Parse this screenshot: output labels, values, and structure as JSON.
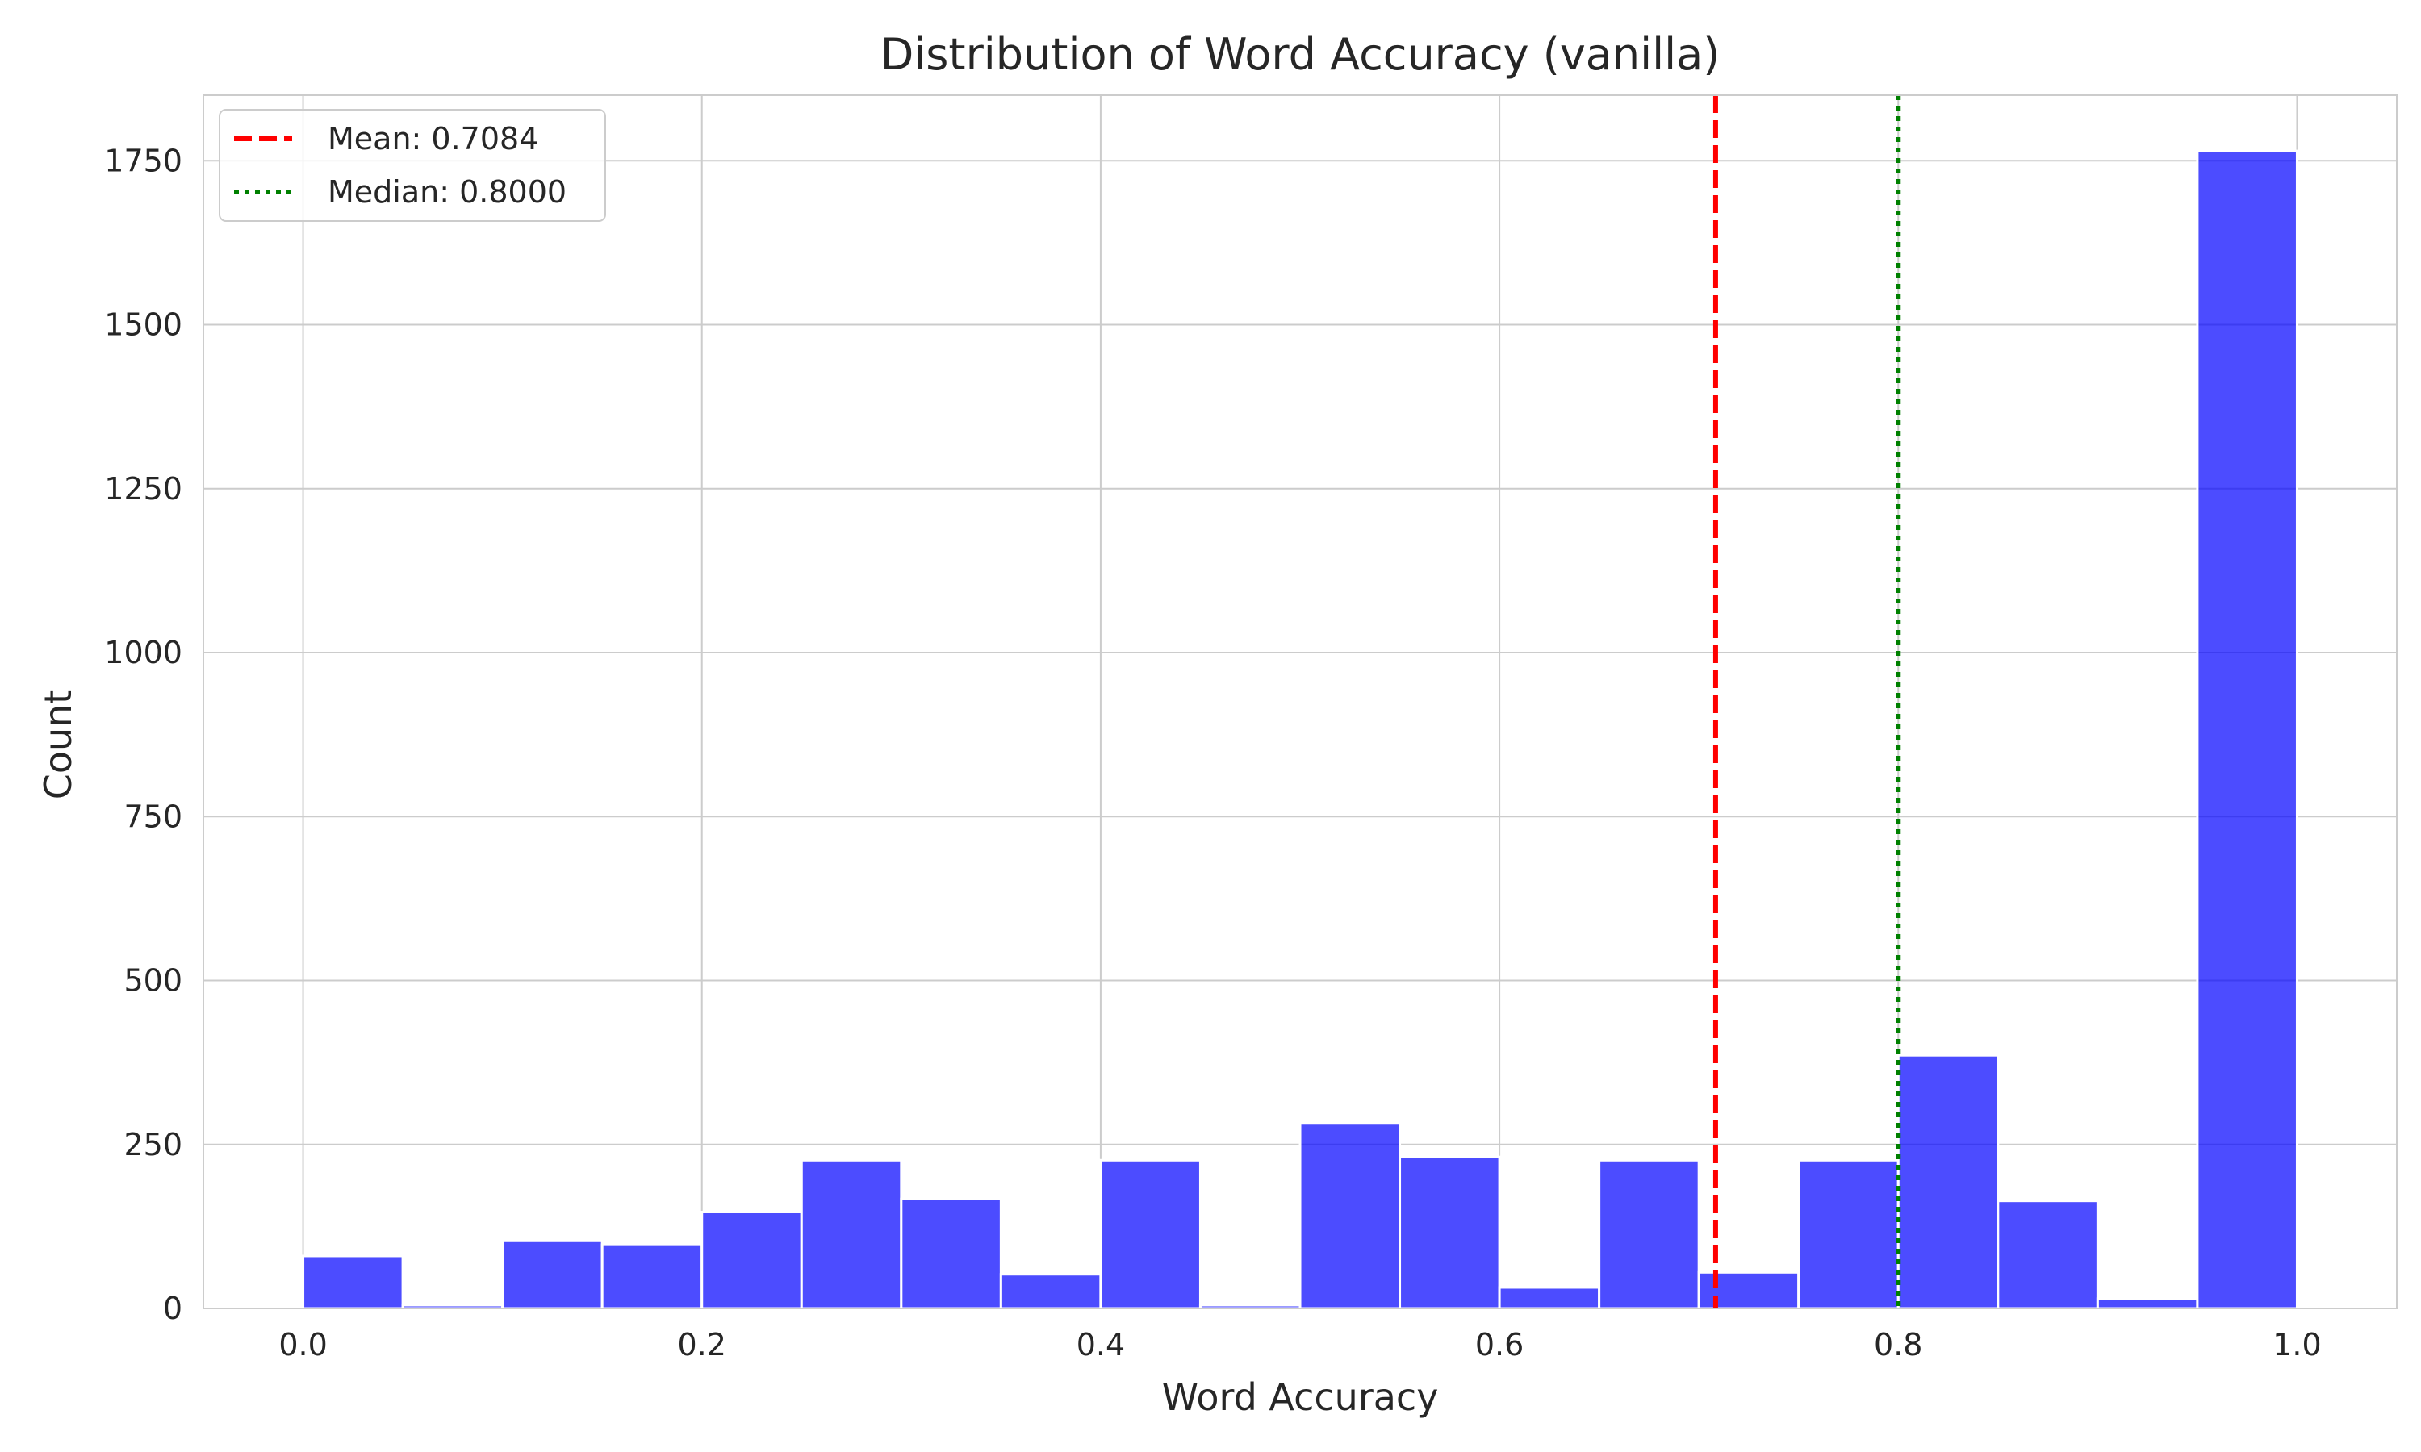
{
  "chart_data": {
    "type": "bar",
    "title": "Distribution of Word Accuracy (vanilla)",
    "xlabel": "Word Accuracy",
    "ylabel": "Count",
    "xlim": [
      -0.05,
      1.05
    ],
    "ylim": [
      0,
      1850
    ],
    "xticks": [
      0.0,
      0.2,
      0.4,
      0.6,
      0.8,
      1.0
    ],
    "xtick_labels": [
      "0.0",
      "0.2",
      "0.4",
      "0.6",
      "0.8",
      "1.0"
    ],
    "yticks": [
      0,
      250,
      500,
      750,
      1000,
      1250,
      1500,
      1750
    ],
    "ytick_labels": [
      "0",
      "250",
      "500",
      "750",
      "1000",
      "1250",
      "1500",
      "1750"
    ],
    "grid": true,
    "bin_width": 0.05,
    "bin_starts": [
      0.0,
      0.05,
      0.1,
      0.15,
      0.2,
      0.25,
      0.3,
      0.35,
      0.4,
      0.45,
      0.5,
      0.55,
      0.6,
      0.65,
      0.7,
      0.75,
      0.8,
      0.85,
      0.9,
      0.95
    ],
    "values": [
      80,
      5,
      103,
      97,
      147,
      226,
      167,
      52,
      226,
      5,
      282,
      231,
      32,
      226,
      55,
      226,
      386,
      164,
      15,
      1765
    ],
    "bar_color": "#0000ff",
    "reference_lines": [
      {
        "label": "Mean: 0.7084",
        "value": 0.7084,
        "color": "#ff0000",
        "style": "dashed"
      },
      {
        "label": "Median: 0.8000",
        "value": 0.8,
        "color": "#008000",
        "style": "dotted"
      }
    ],
    "legend_position": "upper-left"
  }
}
